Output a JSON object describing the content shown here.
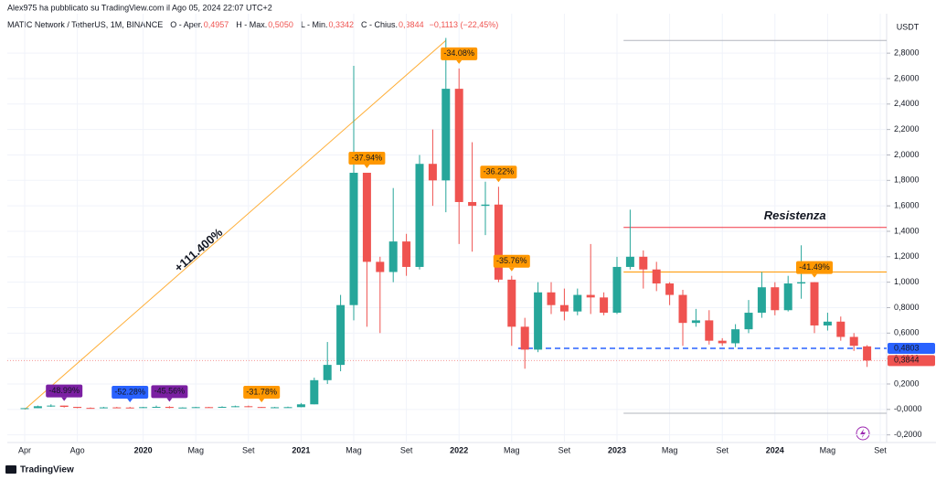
{
  "chart_data": {
    "type": "candlestick",
    "publisher": "Alex975 ha pubblicato su TradingView.com il Ago 05, 2024 22:07 UTC+2",
    "symbol": "MATIC Network / TetherUS, 1M, BINANCE",
    "ohlc_legend": [
      {
        "label": "O - Aper.",
        "value": "0,4957"
      },
      {
        "label": "H - Max.",
        "value": "0,5050"
      },
      {
        "label": "L - Min.",
        "value": "0,3342"
      },
      {
        "label": "C - Chius.",
        "value": "0,3844"
      }
    ],
    "change": "−0,1113 (−22,45%)",
    "y_axis_label": "USDT",
    "brand": "TradingView",
    "categories": [
      "Apr",
      null,
      null,
      null,
      "Ago",
      null,
      null,
      null,
      null,
      "2020",
      null,
      null,
      null,
      "Mag",
      null,
      null,
      null,
      "Set",
      null,
      null,
      null,
      "2021",
      null,
      null,
      null,
      "Mag",
      null,
      null,
      null,
      "Set",
      null,
      null,
      null,
      "2022",
      null,
      null,
      null,
      "Mag",
      null,
      null,
      null,
      "Set",
      null,
      null,
      null,
      "2023",
      null,
      null,
      null,
      "Mag",
      null,
      null,
      null,
      "Set",
      null,
      null,
      null,
      "2024",
      null,
      null,
      null,
      "Mag",
      null,
      null,
      null,
      "Set"
    ],
    "open": [
      0.004,
      0.01,
      0.025,
      0.03,
      0.02,
      0.012,
      0.01,
      0.016,
      0.015,
      0.014,
      0.018,
      0.02,
      0.012,
      0.015,
      0.018,
      0.016,
      0.02,
      0.025,
      0.019,
      0.014,
      0.017,
      0.018,
      0.04,
      0.23,
      0.35,
      0.82,
      1.86,
      1.16,
      1.08,
      1.32,
      1.12,
      1.93,
      1.8,
      2.52,
      1.63,
      1.6,
      1.61,
      1.02,
      0.65,
      0.47,
      0.92,
      0.82,
      0.77,
      0.9,
      0.88,
      0.76,
      1.12,
      1.2,
      1.1,
      0.99,
      0.9,
      0.68,
      0.7,
      0.54,
      0.52,
      0.63,
      0.76,
      0.96,
      0.78,
      0.99,
      1.0,
      0.66,
      0.69,
      0.57,
      0.4957,
      null
    ],
    "high": [
      0.01,
      0.03,
      0.04,
      0.03,
      0.02,
      0.016,
      0.02,
      0.02,
      0.02,
      0.02,
      0.03,
      0.025,
      0.017,
      0.02,
      0.02,
      0.025,
      0.03,
      0.03,
      0.02,
      0.02,
      0.022,
      0.05,
      0.25,
      0.53,
      0.9,
      2.7,
      1.86,
      1.2,
      1.74,
      1.38,
      2.0,
      2.2,
      2.92,
      2.68,
      2.1,
      1.79,
      1.75,
      1.05,
      0.72,
      1.0,
      1.0,
      0.95,
      0.95,
      1.3,
      0.92,
      1.2,
      1.57,
      1.25,
      1.16,
      1.0,
      0.94,
      0.79,
      0.78,
      0.56,
      0.67,
      0.86,
      1.08,
      1.0,
      1.05,
      1.29,
      1.0,
      0.76,
      0.73,
      0.6,
      0.505,
      null
    ],
    "low": [
      0.003,
      0.01,
      0.02,
      0.015,
      0.01,
      0.008,
      0.009,
      0.012,
      0.012,
      0.012,
      0.015,
      0.009,
      0.01,
      0.014,
      0.015,
      0.014,
      0.018,
      0.018,
      0.014,
      0.013,
      0.015,
      0.017,
      0.04,
      0.2,
      0.3,
      0.7,
      0.65,
      0.6,
      1.0,
      1.05,
      1.1,
      1.6,
      1.55,
      1.3,
      1.24,
      1.37,
      1.0,
      0.5,
      0.32,
      0.45,
      0.75,
      0.7,
      0.74,
      0.75,
      0.74,
      0.75,
      1.1,
      0.95,
      0.93,
      0.82,
      0.5,
      0.65,
      0.51,
      0.5,
      0.49,
      0.6,
      0.72,
      0.74,
      0.77,
      0.87,
      0.6,
      0.62,
      0.54,
      0.46,
      0.3342,
      null
    ],
    "close": [
      0.01,
      0.025,
      0.03,
      0.02,
      0.012,
      0.01,
      0.016,
      0.015,
      0.014,
      0.018,
      0.02,
      0.012,
      0.015,
      0.018,
      0.016,
      0.02,
      0.025,
      0.019,
      0.014,
      0.017,
      0.018,
      0.04,
      0.23,
      0.35,
      0.82,
      1.86,
      1.16,
      1.08,
      1.32,
      1.12,
      1.93,
      1.8,
      2.52,
      1.63,
      1.6,
      1.61,
      1.02,
      0.65,
      0.47,
      0.92,
      0.82,
      0.77,
      0.9,
      0.88,
      0.76,
      1.12,
      1.2,
      1.1,
      0.99,
      0.9,
      0.68,
      0.7,
      0.54,
      0.52,
      0.63,
      0.76,
      0.96,
      0.78,
      0.99,
      1.0,
      0.66,
      0.69,
      0.57,
      0.5,
      0.3844,
      null
    ],
    "up_color": "#26a69a",
    "down_color": "#ef5350",
    "ylim": [
      -0.26,
      3.11
    ],
    "yticks": [
      {
        "value": -0.2,
        "label": "-0,2000"
      },
      {
        "value": 0,
        "label": "-0,0000"
      },
      {
        "value": 0.2,
        "label": "0,2000"
      },
      {
        "value": 0.4,
        "label": "0,4000"
      },
      {
        "value": 0.6,
        "label": "0,6000"
      },
      {
        "value": 0.8,
        "label": "0,8000"
      },
      {
        "value": 1.0,
        "label": "1,0000"
      },
      {
        "value": 1.2,
        "label": "1,2000"
      },
      {
        "value": 1.4,
        "label": "1,4000"
      },
      {
        "value": 1.6,
        "label": "1,6000"
      },
      {
        "value": 1.8,
        "label": "1,8000"
      },
      {
        "value": 2.0,
        "label": "2,0000"
      },
      {
        "value": 2.2,
        "label": "2,2000"
      },
      {
        "value": 2.4,
        "label": "2,4000"
      },
      {
        "value": 2.6,
        "label": "2,6000"
      },
      {
        "value": 2.8,
        "label": "2,8000"
      }
    ],
    "grid": true,
    "hlines": [
      {
        "value": 2.9,
        "color": "#b2b5be",
        "start": 46
      },
      {
        "value": 1.43,
        "color": "#f23645",
        "start": 46,
        "text": "Resistenza"
      },
      {
        "value": 1.08,
        "color": "#ff9800",
        "start": 46
      },
      {
        "value": 0.4803,
        "color": "#2962ff",
        "start": 38,
        "style": "dashed",
        "price_label": "0,4803"
      },
      {
        "value": -0.03,
        "color": "#b2b5be",
        "start": 46
      }
    ],
    "last_price": {
      "value": 0.3844,
      "price_label": "0,3844"
    },
    "trendline": {
      "from_index": 0,
      "from_value": 0,
      "to_index": 32,
      "to_value": 2.9,
      "color": "#ff9800",
      "text": "+111.400%"
    },
    "annotations": [
      {
        "text": "-48.99%",
        "index": 3,
        "color": "#7b1fa2"
      },
      {
        "text": "-52.28%",
        "index": 8,
        "color": "#2962ff"
      },
      {
        "text": "-45.56%",
        "index": 11,
        "color": "#7b1fa2"
      },
      {
        "text": "-31.78%",
        "index": 18,
        "color": "#ff9800"
      },
      {
        "text": "-37.94%",
        "index": 26,
        "color": "#ff9800"
      },
      {
        "text": "-34.08%",
        "index": 33,
        "color": "#ff9800"
      },
      {
        "text": "-36.22%",
        "index": 36,
        "color": "#ff9800"
      },
      {
        "text": "-35.76%",
        "index": 37,
        "color": "#ff9800"
      },
      {
        "text": "-41.49%",
        "index": 60,
        "color": "#ff9800"
      }
    ]
  }
}
